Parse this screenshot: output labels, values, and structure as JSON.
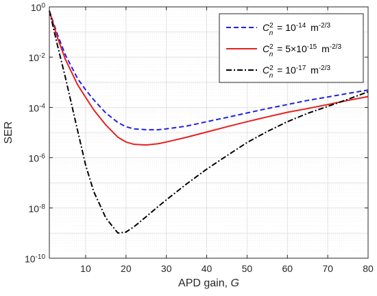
{
  "chart_data": {
    "type": "line",
    "xlabel": "APD gain, ",
    "xlabel_var": "G",
    "ylabel": "SER",
    "xlim": [
      1,
      80
    ],
    "ylim": [
      1e-10,
      1
    ],
    "yscale": "log",
    "grid": true,
    "minor_grid": true,
    "legend_position": "top-right",
    "x_ticks": [
      10,
      20,
      30,
      40,
      50,
      60,
      70,
      80
    ],
    "x_tick_labels": [
      "10",
      "20",
      "30",
      "40",
      "50",
      "60",
      "70",
      "80"
    ],
    "y_ticks": [
      {
        "base": "10",
        "exp": "0",
        "value": 1
      },
      {
        "base": "10",
        "exp": "-2",
        "value": 0.01
      },
      {
        "base": "10",
        "exp": "-4",
        "value": 0.0001
      },
      {
        "base": "10",
        "exp": "-6",
        "value": 1e-06
      },
      {
        "base": "10",
        "exp": "-8",
        "value": 1e-08
      },
      {
        "base": "10",
        "exp": "-10",
        "value": 1e-10
      }
    ],
    "x": [
      1,
      3,
      5,
      8,
      10,
      12,
      15,
      18,
      20,
      22,
      25,
      28,
      30,
      35,
      40,
      45,
      50,
      55,
      60,
      65,
      70,
      75,
      80
    ],
    "series": [
      {
        "legend_lhs_base": "C",
        "legend_lhs_sup": "2",
        "legend_lhs_sub": "n",
        "legend_eq": "=",
        "legend_rhs_pre": "10",
        "legend_rhs_exp": "-14",
        "legend_unit": "m",
        "legend_unit_exp": "-2/3",
        "color": "#1f1fe6",
        "dash": "dashed",
        "values": [
          0.7,
          0.08,
          0.012,
          0.0014,
          0.0005,
          0.0002,
          6e-05,
          2.5e-05,
          1.7e-05,
          1.4e-05,
          1.3e-05,
          1.3e-05,
          1.4e-05,
          1.8e-05,
          2.7e-05,
          4e-05,
          6e-05,
          9e-05,
          0.00013,
          0.00019,
          0.00026,
          0.00036,
          0.00049
        ]
      },
      {
        "legend_lhs_base": "C",
        "legend_lhs_sup": "2",
        "legend_lhs_sub": "n",
        "legend_eq": "=",
        "legend_rhs_pre": "5×10",
        "legend_rhs_exp": "-15",
        "legend_unit": "m",
        "legend_unit_exp": "-2/3",
        "color": "#e61f1f",
        "dash": "solid",
        "values": [
          0.7,
          0.06,
          0.008,
          0.0008,
          0.00025,
          8e-05,
          2e-05,
          6.5e-06,
          4.2e-06,
          3.4e-06,
          3.2e-06,
          3.6e-06,
          4.2e-06,
          6.5e-06,
          1.05e-05,
          1.7e-05,
          2.7e-05,
          4.2e-05,
          6.4e-05,
          9e-05,
          0.00013,
          0.00019,
          0.00027
        ]
      },
      {
        "legend_lhs_base": "C",
        "legend_lhs_sup": "2",
        "legend_lhs_sub": "n",
        "legend_eq": "=",
        "legend_rhs_pre": "10",
        "legend_rhs_exp": "-17",
        "legend_unit": "m",
        "legend_unit_exp": "-2/3",
        "color": "#000000",
        "dash": "dashdot",
        "values": [
          0.7,
          0.03,
          0.0015,
          1.2e-05,
          5e-07,
          4.5e-08,
          4e-09,
          1e-09,
          1.1e-09,
          1.8e-09,
          4.5e-09,
          1.15e-08,
          2.1e-08,
          9e-08,
          3.5e-07,
          1.2e-06,
          4e-06,
          1.1e-05,
          2.7e-05,
          5.8e-05,
          0.00011,
          0.00021,
          0.00042
        ]
      }
    ]
  }
}
